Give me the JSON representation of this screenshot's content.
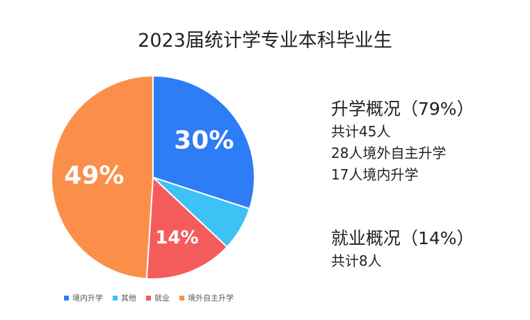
{
  "chart_data": {
    "type": "pie",
    "title": "2023届统计学专业本科毕业生",
    "slices": [
      {
        "name": "境内升学",
        "value": 30,
        "label": "30%",
        "color": "#2e7cf6"
      },
      {
        "name": "其他",
        "value": 7,
        "label": "",
        "color": "#3ec1f5"
      },
      {
        "name": "就业",
        "value": 14,
        "label": "14%",
        "color": "#f45c5c"
      },
      {
        "name": "境外自主升学",
        "value": 49,
        "label": "49%",
        "color": "#fb8f4a"
      }
    ],
    "legend": {
      "placement": "bottom-left"
    }
  },
  "panel": {
    "further_study": {
      "heading": "升学概况（79%）",
      "lines": [
        "共计45人",
        "28人境外自主升学",
        "17人境内升学"
      ]
    },
    "employment": {
      "heading": "就业概况（14%）",
      "lines": [
        "共计8人"
      ]
    }
  }
}
